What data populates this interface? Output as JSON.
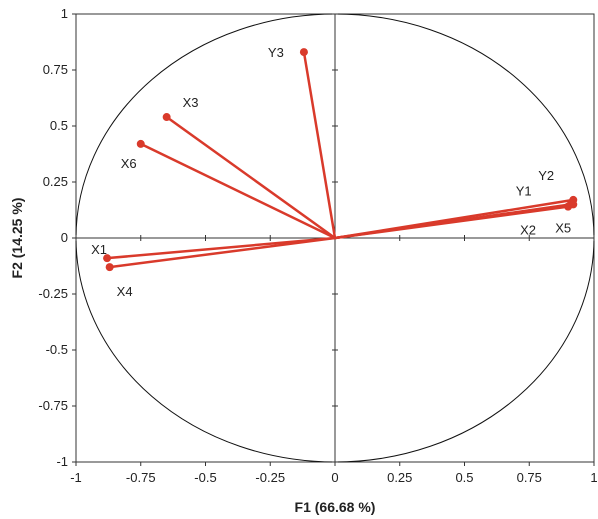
{
  "chart_data": {
    "type": "scatter",
    "subtype": "correlation-circle",
    "xlabel": "F1 (66.68 %)",
    "ylabel": "F2 (14.25 %)",
    "xlim": [
      -1,
      1
    ],
    "ylim": [
      -1,
      1
    ],
    "x_ticks": [
      "-1",
      "-0.75",
      "-0.5",
      "-0.25",
      "0",
      "0.25",
      "0.5",
      "0.75",
      "1"
    ],
    "y_ticks": [
      "1",
      "0.75",
      "0.5",
      "0.25",
      "0",
      "-0.25",
      "-0.5",
      "-0.75",
      "-1"
    ],
    "grid": false,
    "unit_circle": true,
    "vector_color": "#d93a2b",
    "points": [
      {
        "label": "Y3",
        "x": -0.12,
        "y": 0.83
      },
      {
        "label": "X3",
        "x": -0.65,
        "y": 0.54
      },
      {
        "label": "X6",
        "x": -0.75,
        "y": 0.42
      },
      {
        "label": "X1",
        "x": -0.88,
        "y": -0.09
      },
      {
        "label": "X4",
        "x": -0.87,
        "y": -0.13
      },
      {
        "label": "Y1",
        "x": 0.91,
        "y": 0.15
      },
      {
        "label": "Y2",
        "x": 0.92,
        "y": 0.17
      },
      {
        "label": "X2",
        "x": 0.9,
        "y": 0.14
      },
      {
        "label": "X5",
        "x": 0.92,
        "y": 0.15
      }
    ]
  }
}
